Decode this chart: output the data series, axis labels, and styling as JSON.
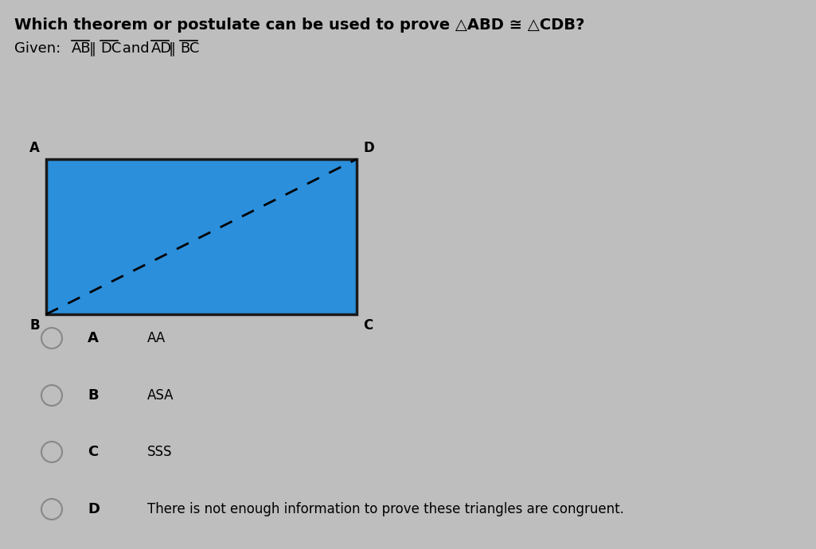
{
  "title": "Which theorem or postulate can be used to prove △ABD ≅ △CDB?",
  "rect_color": "#2b8fdb",
  "rect_edge_color": "#1a1a1a",
  "bg_color": "#bebebe",
  "label_A": "A",
  "label_B": "B",
  "label_C": "C",
  "label_D": "D",
  "options": [
    {
      "letter": "A",
      "text": "AA"
    },
    {
      "letter": "B",
      "text": "ASA"
    },
    {
      "letter": "C",
      "text": "SSS"
    },
    {
      "letter": "D",
      "text": "There is not enough information to prove these triangles are congruent."
    }
  ],
  "title_fontsize": 14,
  "given_fontsize": 13,
  "label_fontsize": 12,
  "option_letter_fontsize": 13,
  "option_text_fontsize": 12
}
